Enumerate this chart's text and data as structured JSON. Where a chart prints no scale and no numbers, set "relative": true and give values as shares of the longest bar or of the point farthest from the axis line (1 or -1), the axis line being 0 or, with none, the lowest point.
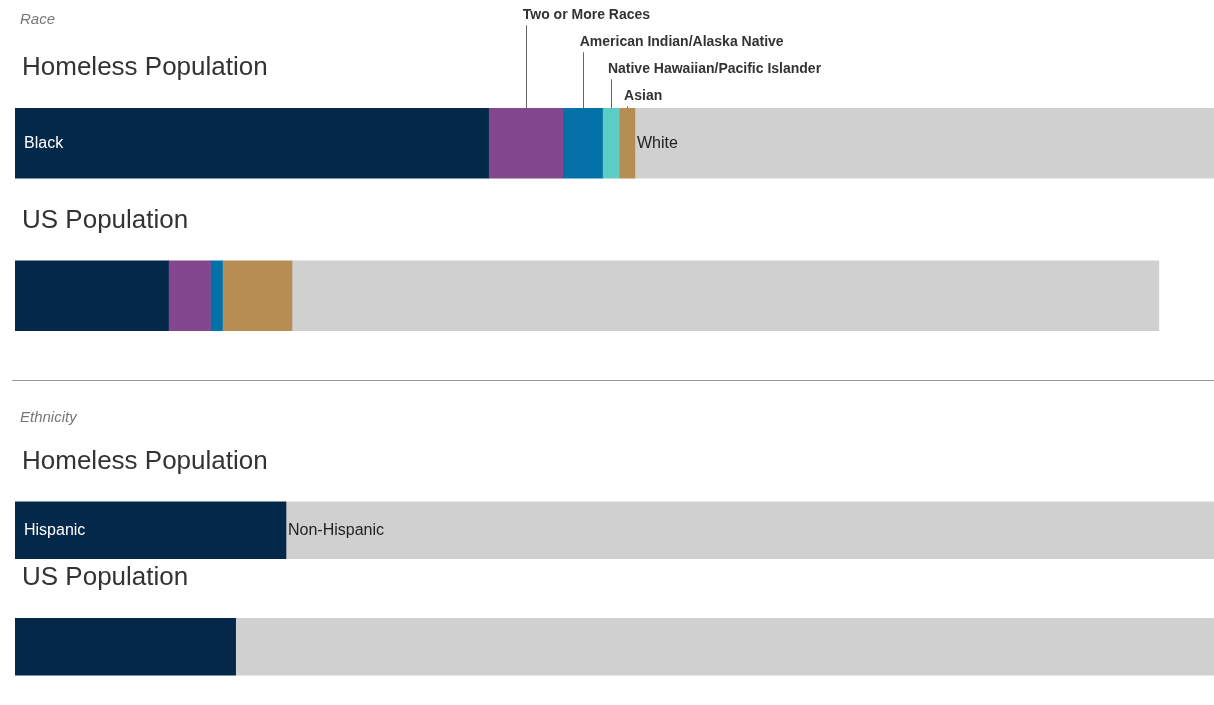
{
  "chart_data": [
    {
      "type": "bar",
      "title": "Race",
      "orientation": "horizontal",
      "stacked": true,
      "relative": true,
      "legend": false,
      "categories": [
        "Homeless Population",
        "US Population"
      ],
      "series": [
        {
          "name": "Black",
          "color": "#03284a",
          "values": [
            0.395,
            0.128
          ]
        },
        {
          "name": "Two or More Races",
          "color": "#82478d",
          "values": [
            0.062,
            0.035
          ]
        },
        {
          "name": "American Indian/Alaska Native",
          "color": "#0472a8",
          "values": [
            0.033,
            0.01
          ]
        },
        {
          "name": "Native Hawaiian/Pacific Islander",
          "color": "#5ccdc4",
          "values": [
            0.014,
            0
          ]
        },
        {
          "name": "Asian",
          "color": "#b68e53",
          "values": [
            0.013,
            0.058
          ]
        },
        {
          "name": "White",
          "color": "#d0d0d0",
          "values": [
            0.483,
            0.723
          ]
        }
      ]
    },
    {
      "type": "bar",
      "title": "Ethnicity",
      "orientation": "horizontal",
      "stacked": true,
      "relative": true,
      "legend": false,
      "categories": [
        "Homeless Population",
        "US Population"
      ],
      "series": [
        {
          "name": "Hispanic",
          "color": "#03284a",
          "values": [
            0.226,
            0.184
          ]
        },
        {
          "name": "Non-Hispanic",
          "color": "#d0d0d0",
          "values": [
            0.774,
            0.816
          ]
        }
      ]
    }
  ]
}
